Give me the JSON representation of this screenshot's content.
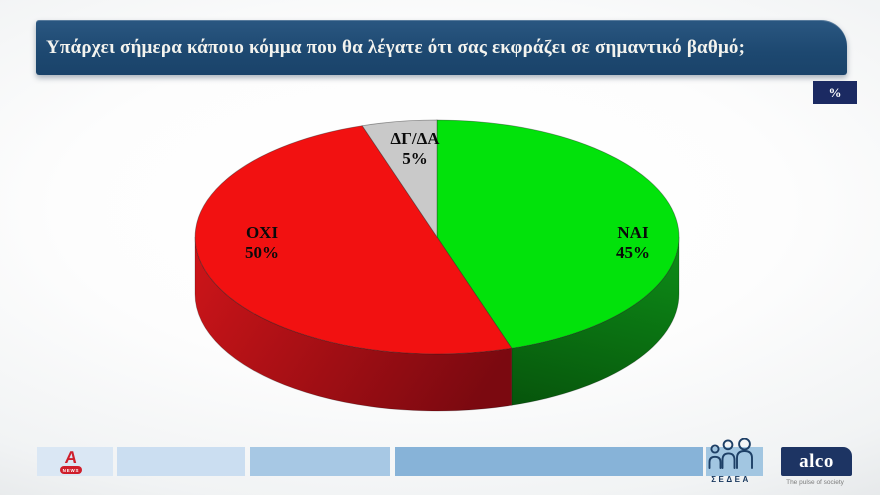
{
  "header": {
    "question": "Υπάρχει σήμερα κάποιο κόμμα που θα λέγατε ότι σας εκφράζει σε σημαντικό βαθμό;",
    "unit_badge": "%"
  },
  "chart_data": {
    "type": "pie",
    "style": "3d",
    "title": "Υπάρχει σήμερα κάποιο κόμμα που θα λέγατε ότι σας εκφράζει σε σημαντικό βαθμό;",
    "unit": "%",
    "labels": [
      "ΝΑΙ",
      "ΟΧΙ",
      "ΔΓ/ΔΑ"
    ],
    "values": [
      45,
      50,
      5
    ],
    "colors": [
      "#02e20b",
      "#f21111",
      "#c9c9c9"
    ],
    "side_colors": [
      [
        "#0d8a17",
        "#07560c"
      ],
      [
        "#ce1519",
        "#7b0910"
      ],
      [
        "#9a9a9a",
        "#7f7f7f"
      ]
    ],
    "start_angle_deg": 0,
    "direction": "clockwise",
    "legend": "none"
  },
  "footer": {
    "band_colors": [
      "#dae7f4",
      "#cbdef1",
      "#a7c8e4",
      "#87b3d8",
      "#a2c6e1"
    ],
    "alpha": {
      "letter": "A",
      "banner": "NEWS"
    },
    "sedea": {
      "label": "ΣΕΔΕΑ"
    },
    "alco": {
      "name": "alco",
      "tagline": "The pulse of society"
    }
  },
  "colors": {
    "title_bar_bg": "#1e4b74",
    "badge_bg": "#1b2a62",
    "alco_bg": "#1d3463",
    "title_text": "#f3f3ee",
    "pie_label_text": "#0a0a0a"
  }
}
